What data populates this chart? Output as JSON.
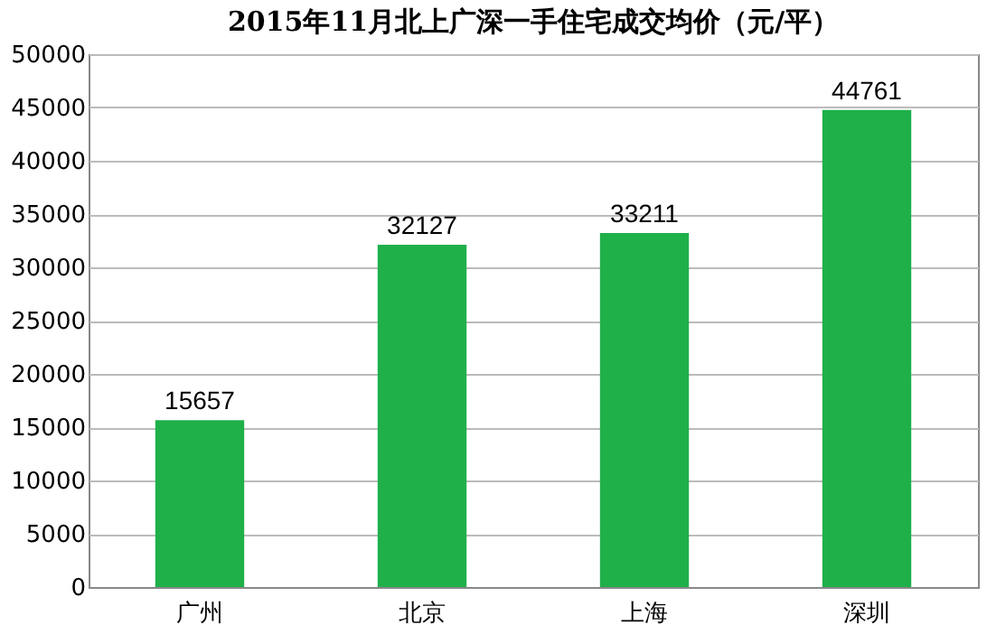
{
  "chart_data": {
    "type": "bar",
    "title": "2015年11月北上广深一手住宅成交均价（元/平）",
    "categories": [
      "广州",
      "北京",
      "上海",
      "深圳"
    ],
    "values": [
      15657,
      32127,
      33211,
      44761
    ],
    "color": "#1fb04a",
    "ylim": [
      0,
      50000
    ],
    "yticks": [
      0,
      5000,
      10000,
      15000,
      20000,
      25000,
      30000,
      35000,
      40000,
      45000,
      50000
    ],
    "grid": "y",
    "data_labels": true
  }
}
